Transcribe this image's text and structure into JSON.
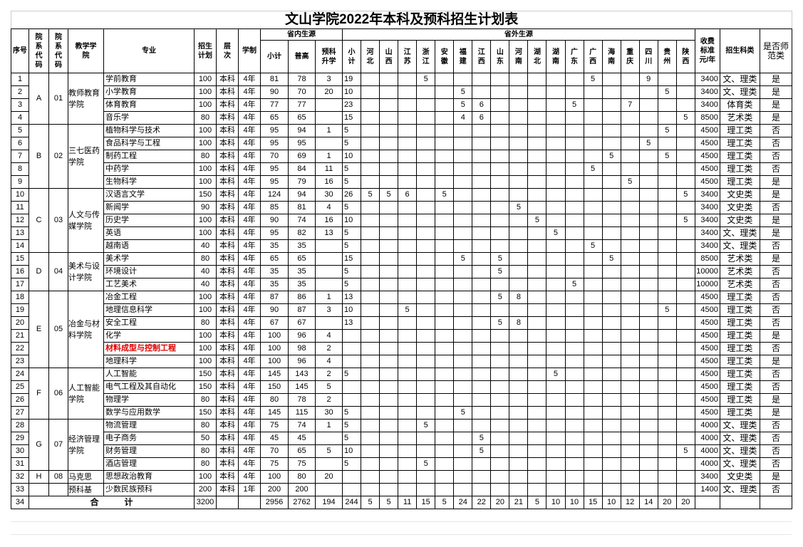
{
  "title": "文山学院2022年本科及预科招生计划表",
  "headers": {
    "seq": "序号",
    "dept_code": "院系代码",
    "college_code": "院系代码",
    "college": "教学学院",
    "major": "专业",
    "plan": "招生计划",
    "level": "层次",
    "duration": "学制",
    "in_province": "省内生源",
    "out_province": "省外生源",
    "in_subtotal": "小计",
    "in_general": "普高",
    "in_prep": "预科升学",
    "out_subtotal": "小计",
    "fee": "收费标准元/年",
    "category": "招生科类",
    "normal": "是否师范类"
  },
  "provinces": [
    "河北",
    "山西",
    "江苏",
    "浙江",
    "安徽",
    "福建",
    "江西",
    "山东",
    "河南",
    "湖北",
    "湖南",
    "广东",
    "广西",
    "海南",
    "重庆",
    "四川",
    "贵州",
    "陕西"
  ],
  "groups": [
    {
      "dept": "A",
      "code": "01",
      "college": "教师教育学院",
      "rows": 4
    },
    {
      "dept": "B",
      "code": "02",
      "college": "三七医药学院",
      "rows": 5
    },
    {
      "dept": "C",
      "code": "03",
      "college": "人文与传媒学院",
      "rows": 5
    },
    {
      "dept": "D",
      "code": "04",
      "college": "美术与设计学院",
      "rows": 3
    },
    {
      "dept": "E",
      "code": "05",
      "college": "冶金与材料学院",
      "rows": 6
    },
    {
      "dept": "F",
      "code": "06",
      "college": "人工智能学院",
      "rows": 4
    },
    {
      "dept": "G",
      "code": "07",
      "college": "经济管理学院",
      "rows": 4
    },
    {
      "dept": "H",
      "code": "08",
      "college": "马克思",
      "rows": 1
    },
    {
      "dept": "",
      "code": "",
      "college": "预科基",
      "rows": 1
    }
  ],
  "rows": [
    {
      "seq": "1",
      "major": "学前教育",
      "plan": "100",
      "level": "本科",
      "duration": "4年",
      "in_sub": "81",
      "in_gen": "78",
      "in_prep": "3",
      "out_sub": "19",
      "out": {
        "浙江": "5",
        "广西": "5",
        "四川": "9"
      },
      "fee": "3400",
      "category": "文、理类",
      "normal": "是"
    },
    {
      "seq": "2",
      "major": "小学教育",
      "plan": "100",
      "level": "本科",
      "duration": "4年",
      "in_sub": "90",
      "in_gen": "70",
      "in_prep": "20",
      "out_sub": "10",
      "out": {
        "福建": "5",
        "贵州": "5"
      },
      "fee": "3400",
      "category": "文、理类",
      "normal": "是"
    },
    {
      "seq": "3",
      "major": "体育教育",
      "plan": "100",
      "level": "本科",
      "duration": "4年",
      "in_sub": "77",
      "in_gen": "77",
      "in_prep": "",
      "out_sub": "23",
      "out": {
        "福建": "5",
        "江西": "6",
        "广东": "5",
        "重庆": "7"
      },
      "fee": "3400",
      "category": "体育类",
      "normal": "是"
    },
    {
      "seq": "4",
      "major": "音乐学",
      "plan": "80",
      "level": "本科",
      "duration": "4年",
      "in_sub": "65",
      "in_gen": "65",
      "in_prep": "",
      "out_sub": "15",
      "out": {
        "福建": "4",
        "江西": "6",
        "陕西": "5"
      },
      "fee": "8500",
      "category": "艺术类",
      "normal": "是"
    },
    {
      "seq": "5",
      "major": "植物科学与技术",
      "plan": "100",
      "level": "本科",
      "duration": "4年",
      "in_sub": "95",
      "in_gen": "94",
      "in_prep": "1",
      "out_sub": "5",
      "out": {
        "贵州": "5"
      },
      "fee": "4500",
      "category": "理工类",
      "normal": "否"
    },
    {
      "seq": "6",
      "major": "食品科学与工程",
      "plan": "100",
      "level": "本科",
      "duration": "4年",
      "in_sub": "95",
      "in_gen": "95",
      "in_prep": "",
      "out_sub": "5",
      "out": {
        "四川": "5"
      },
      "fee": "4500",
      "category": "理工类",
      "normal": "否"
    },
    {
      "seq": "7",
      "major": "制药工程",
      "plan": "80",
      "level": "本科",
      "duration": "4年",
      "in_sub": "70",
      "in_gen": "69",
      "in_prep": "1",
      "out_sub": "10",
      "out": {
        "海南": "5",
        "贵州": "5"
      },
      "fee": "4500",
      "category": "理工类",
      "normal": "否"
    },
    {
      "seq": "8",
      "major": "中药学",
      "plan": "100",
      "level": "本科",
      "duration": "4年",
      "in_sub": "95",
      "in_gen": "84",
      "in_prep": "11",
      "out_sub": "5",
      "out": {
        "广西": "5"
      },
      "fee": "4500",
      "category": "理工类",
      "normal": "否"
    },
    {
      "seq": "9",
      "major": "生物科学",
      "plan": "100",
      "level": "本科",
      "duration": "4年",
      "in_sub": "95",
      "in_gen": "79",
      "in_prep": "16",
      "out_sub": "5",
      "out": {
        "重庆": "5"
      },
      "fee": "4500",
      "category": "理工类",
      "normal": "是"
    },
    {
      "seq": "10",
      "major": "汉语言文学",
      "plan": "150",
      "level": "本科",
      "duration": "4年",
      "in_sub": "124",
      "in_gen": "94",
      "in_prep": "30",
      "out_sub": "26",
      "out": {
        "河北": "5",
        "山西": "5",
        "江苏": "6",
        "安徽": "5",
        "陕西": "5"
      },
      "fee": "3400",
      "category": "文史类",
      "normal": "是"
    },
    {
      "seq": "11",
      "major": "新闻学",
      "plan": "90",
      "level": "本科",
      "duration": "4年",
      "in_sub": "85",
      "in_gen": "81",
      "in_prep": "4",
      "out_sub": "5",
      "out": {
        "河南": "5"
      },
      "fee": "3400",
      "category": "文史类",
      "normal": "否"
    },
    {
      "seq": "12",
      "major": "历史学",
      "plan": "100",
      "level": "本科",
      "duration": "4年",
      "in_sub": "90",
      "in_gen": "74",
      "in_prep": "16",
      "out_sub": "10",
      "out": {
        "湖北": "5",
        "陕西": "5"
      },
      "fee": "3400",
      "category": "文史类",
      "normal": "是"
    },
    {
      "seq": "13",
      "major": "英语",
      "plan": "100",
      "level": "本科",
      "duration": "4年",
      "in_sub": "95",
      "in_gen": "82",
      "in_prep": "13",
      "out_sub": "5",
      "out": {
        "湖南": "5"
      },
      "fee": "3400",
      "category": "文、理类",
      "normal": "是"
    },
    {
      "seq": "14",
      "major": "越南语",
      "plan": "40",
      "level": "本科",
      "duration": "4年",
      "in_sub": "35",
      "in_gen": "35",
      "in_prep": "",
      "out_sub": "5",
      "out": {
        "广西": "5"
      },
      "fee": "3400",
      "category": "文、理类",
      "normal": "否"
    },
    {
      "seq": "15",
      "major": "美术学",
      "plan": "80",
      "level": "本科",
      "duration": "4年",
      "in_sub": "65",
      "in_gen": "65",
      "in_prep": "",
      "out_sub": "15",
      "out": {
        "福建": "5",
        "山东": "5",
        "海南": "5"
      },
      "fee": "8500",
      "category": "艺术类",
      "normal": "是"
    },
    {
      "seq": "16",
      "major": "环境设计",
      "plan": "40",
      "level": "本科",
      "duration": "4年",
      "in_sub": "35",
      "in_gen": "35",
      "in_prep": "",
      "out_sub": "5",
      "out": {
        "山东": "5"
      },
      "fee": "10000",
      "category": "艺术类",
      "normal": "否"
    },
    {
      "seq": "17",
      "major": "工艺美术",
      "plan": "40",
      "level": "本科",
      "duration": "4年",
      "in_sub": "35",
      "in_gen": "35",
      "in_prep": "",
      "out_sub": "5",
      "out": {
        "广东": "5"
      },
      "fee": "10000",
      "category": "艺术类",
      "normal": "否"
    },
    {
      "seq": "18",
      "major": "冶金工程",
      "plan": "100",
      "level": "本科",
      "duration": "4年",
      "in_sub": "87",
      "in_gen": "86",
      "in_prep": "1",
      "out_sub": "13",
      "out": {
        "山东": "5",
        "河南": "8"
      },
      "fee": "4500",
      "category": "理工类",
      "normal": "否"
    },
    {
      "seq": "19",
      "major": "地理信息科学",
      "plan": "100",
      "level": "本科",
      "duration": "4年",
      "in_sub": "90",
      "in_gen": "87",
      "in_prep": "3",
      "out_sub": "10",
      "out": {
        "江苏": "5",
        "贵州": "5"
      },
      "fee": "4500",
      "category": "理工类",
      "normal": "否"
    },
    {
      "seq": "20",
      "major": "安全工程",
      "plan": "80",
      "level": "本科",
      "duration": "4年",
      "in_sub": "67",
      "in_gen": "67",
      "in_prep": "",
      "out_sub": "13",
      "out": {
        "山东": "5",
        "河南": "8"
      },
      "fee": "4500",
      "category": "理工类",
      "normal": "否"
    },
    {
      "seq": "21",
      "major": "化学",
      "plan": "100",
      "level": "本科",
      "duration": "4年",
      "in_sub": "100",
      "in_gen": "96",
      "in_prep": "4",
      "out_sub": "",
      "out": {},
      "fee": "4500",
      "category": "理工类",
      "normal": "是"
    },
    {
      "seq": "22",
      "major": "材料成型与控制工程",
      "highlight": true,
      "plan": "100",
      "level": "本科",
      "duration": "4年",
      "in_sub": "100",
      "in_gen": "98",
      "in_prep": "2",
      "out_sub": "",
      "out": {},
      "fee": "4500",
      "category": "理工类",
      "normal": "否"
    },
    {
      "seq": "23",
      "major": "地理科学",
      "plan": "100",
      "level": "本科",
      "duration": "4年",
      "in_sub": "100",
      "in_gen": "96",
      "in_prep": "4",
      "out_sub": "",
      "out": {},
      "fee": "4500",
      "category": "理工类",
      "normal": "是"
    },
    {
      "seq": "24",
      "major": "人工智能",
      "plan": "150",
      "level": "本科",
      "duration": "4年",
      "in_sub": "145",
      "in_gen": "143",
      "in_prep": "2",
      "out_sub": "5",
      "out": {
        "湖南": "5"
      },
      "fee": "4500",
      "category": "理工类",
      "normal": "否"
    },
    {
      "seq": "25",
      "major": "电气工程及其自动化",
      "plan": "150",
      "level": "本科",
      "duration": "4年",
      "in_sub": "150",
      "in_gen": "145",
      "in_prep": "5",
      "out_sub": "",
      "out": {},
      "fee": "4500",
      "category": "理工类",
      "normal": "否"
    },
    {
      "seq": "26",
      "major": "物理学",
      "plan": "80",
      "level": "本科",
      "duration": "4年",
      "in_sub": "80",
      "in_gen": "78",
      "in_prep": "2",
      "out_sub": "",
      "out": {},
      "fee": "4500",
      "category": "理工类",
      "normal": "是"
    },
    {
      "seq": "27",
      "major": "数学与应用数学",
      "plan": "150",
      "level": "本科",
      "duration": "4年",
      "in_sub": "145",
      "in_gen": "115",
      "in_prep": "30",
      "out_sub": "5",
      "out": {
        "福建": "5"
      },
      "fee": "4500",
      "category": "理工类",
      "normal": "是"
    },
    {
      "seq": "28",
      "major": "物流管理",
      "plan": "80",
      "level": "本科",
      "duration": "4年",
      "in_sub": "75",
      "in_gen": "74",
      "in_prep": "1",
      "out_sub": "5",
      "out": {
        "浙江": "5"
      },
      "fee": "4000",
      "category": "文、理类",
      "normal": "否"
    },
    {
      "seq": "29",
      "major": "电子商务",
      "plan": "50",
      "level": "本科",
      "duration": "4年",
      "in_sub": "45",
      "in_gen": "45",
      "in_prep": "",
      "out_sub": "5",
      "out": {
        "江西": "5"
      },
      "fee": "4000",
      "category": "文、理类",
      "normal": "否"
    },
    {
      "seq": "30",
      "major": "财务管理",
      "plan": "80",
      "level": "本科",
      "duration": "4年",
      "in_sub": "70",
      "in_gen": "65",
      "in_prep": "5",
      "out_sub": "10",
      "out": {
        "江西": "5",
        "陕西": "5"
      },
      "fee": "4000",
      "category": "文、理类",
      "normal": "否"
    },
    {
      "seq": "31",
      "major": "酒店管理",
      "plan": "80",
      "level": "本科",
      "duration": "4年",
      "in_sub": "75",
      "in_gen": "75",
      "in_prep": "",
      "out_sub": "5",
      "out": {
        "浙江": "5"
      },
      "fee": "4000",
      "category": "文、理类",
      "normal": "否"
    },
    {
      "seq": "32",
      "major": "思想政治教育",
      "plan": "100",
      "level": "本科",
      "duration": "4年",
      "in_sub": "100",
      "in_gen": "80",
      "in_prep": "20",
      "out_sub": "",
      "out": {},
      "fee": "3400",
      "category": "文史类",
      "normal": "是"
    },
    {
      "seq": "33",
      "major": "少数民族预科",
      "plan": "200",
      "level": "本科",
      "duration": "1年",
      "in_sub": "200",
      "in_gen": "200",
      "in_prep": "",
      "out_sub": "",
      "out": {},
      "fee": "1400",
      "category": "文、理类",
      "normal": "否"
    }
  ],
  "total": {
    "seq": "34",
    "label": "合　　　计",
    "plan": "3200",
    "in_sub": "2956",
    "in_gen": "2762",
    "in_prep": "194",
    "out_sub": "244",
    "out": [
      "5",
      "5",
      "11",
      "15",
      "5",
      "24",
      "22",
      "20",
      "21",
      "5",
      "10",
      "10",
      "15",
      "10",
      "12",
      "14",
      "20",
      "20"
    ]
  }
}
